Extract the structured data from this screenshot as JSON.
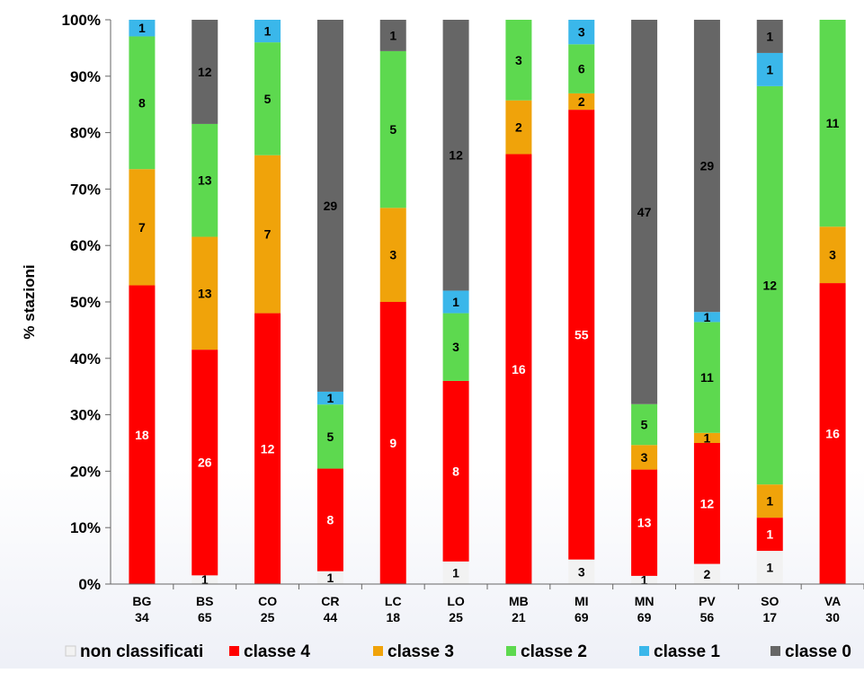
{
  "chart_data": {
    "type": "bar",
    "stacked": true,
    "ylabel": "% stazioni",
    "ylim": [
      0,
      100
    ],
    "yticks": [
      "0%",
      "10%",
      "20%",
      "30%",
      "40%",
      "50%",
      "60%",
      "70%",
      "80%",
      "90%",
      "100%"
    ],
    "categories": [
      "BG",
      "BS",
      "CO",
      "CR",
      "LC",
      "LO",
      "MB",
      "MI",
      "MN",
      "PV",
      "SO",
      "VA"
    ],
    "category_totals": [
      "34",
      "65",
      "25",
      "44",
      "18",
      "25",
      "21",
      "69",
      "69",
      "56",
      "17",
      "30"
    ],
    "legend_position": "bottom",
    "series": [
      {
        "name": "non classificati",
        "color": "#f2f2f2",
        "label_color": "#000000",
        "values": [
          0,
          1,
          0,
          1,
          0,
          1,
          0,
          3,
          1,
          2,
          1,
          0
        ]
      },
      {
        "name": "classe 4",
        "color": "#ff0000",
        "label_color": "#ffffff",
        "values": [
          18,
          26,
          12,
          8,
          9,
          8,
          16,
          55,
          13,
          12,
          1,
          16
        ]
      },
      {
        "name": "classe 3",
        "color": "#f0a30a",
        "label_color": "#000000",
        "values": [
          7,
          13,
          7,
          0,
          3,
          0,
          2,
          2,
          3,
          1,
          1,
          3
        ]
      },
      {
        "name": "classe 2",
        "color": "#5dd94f",
        "label_color": "#000000",
        "values": [
          8,
          13,
          5,
          5,
          5,
          3,
          3,
          6,
          5,
          11,
          12,
          11
        ]
      },
      {
        "name": "classe 1",
        "color": "#3ab7ea",
        "label_color": "#000000",
        "values": [
          1,
          0,
          1,
          1,
          0,
          1,
          0,
          3,
          0,
          1,
          1,
          0
        ]
      },
      {
        "name": "classe 0",
        "color": "#666666",
        "label_color": "#000000",
        "values": [
          0,
          12,
          0,
          29,
          1,
          12,
          0,
          0,
          47,
          29,
          1,
          0
        ]
      }
    ]
  }
}
